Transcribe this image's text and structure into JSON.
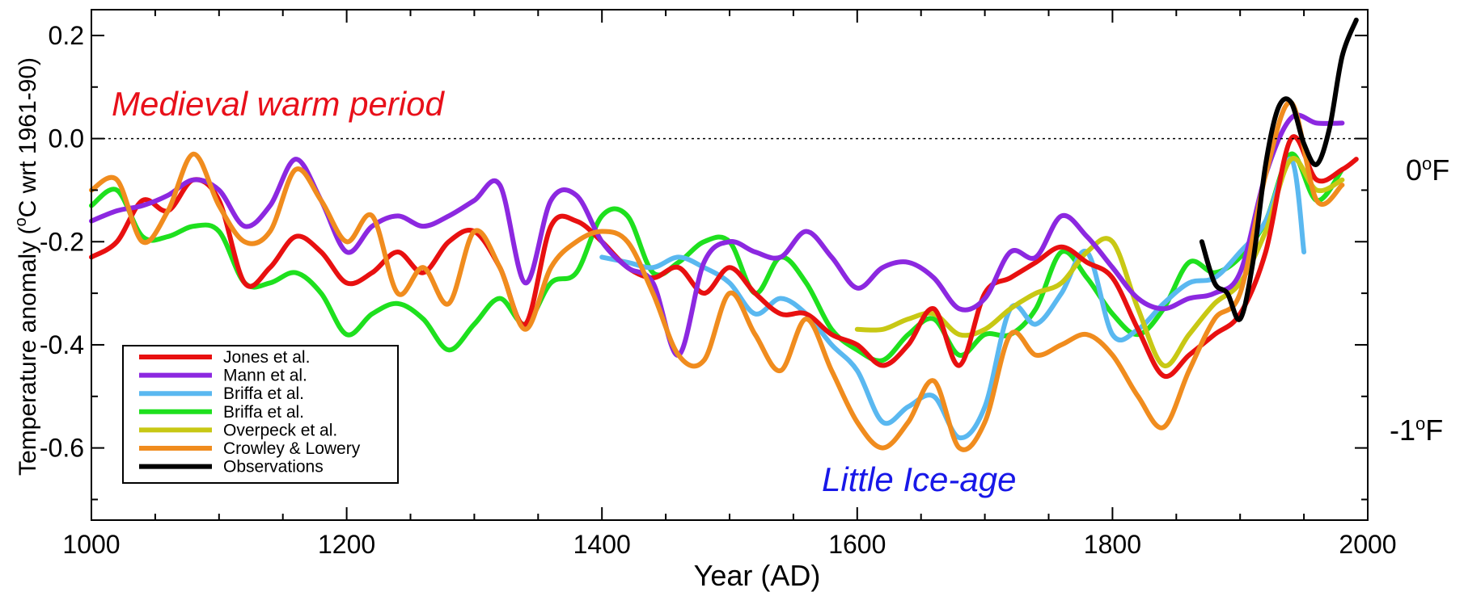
{
  "chart_data": {
    "type": "line",
    "title": "",
    "xlabel": "Year  (AD)",
    "ylabel_main": "Temperature anomaly  (",
    "ylabel_sup": "o",
    "ylabel_rest": "C wrt 1961-90)",
    "xlim": [
      1000,
      2000
    ],
    "ylim": [
      -0.74,
      0.25
    ],
    "x_ticks": [
      1000,
      1200,
      1400,
      1600,
      1800,
      2000
    ],
    "y_ticks": [
      0.2,
      0.0,
      -0.2,
      -0.4,
      -0.6
    ],
    "y_tick_labels": [
      "0.2",
      "0.0",
      "-0.2",
      "-0.4",
      "-0.6"
    ],
    "zero_line": "dotted",
    "grid": false,
    "legend_position": "bottom-left",
    "annotations": [
      {
        "text": "Medieval warm period",
        "color": "#e8101a",
        "x": 1140,
        "y": 0.03
      },
      {
        "text": "Little Ice-age",
        "color": "#1818e8",
        "x": 1680,
        "y": -0.66
      }
    ],
    "right_axis_labels": [
      {
        "num": "0",
        "sup": "o",
        "unit": "F",
        "y": 0.0
      },
      {
        "num": "-1",
        "sup": "o",
        "unit": "F",
        "y": -0.56
      }
    ],
    "series": [
      {
        "name": "Jones et al.",
        "color": "#e81010",
        "x": [
          1000,
          1020,
          1040,
          1060,
          1080,
          1100,
          1120,
          1140,
          1160,
          1180,
          1200,
          1220,
          1240,
          1260,
          1280,
          1300,
          1320,
          1340,
          1360,
          1380,
          1400,
          1420,
          1440,
          1460,
          1480,
          1500,
          1520,
          1540,
          1560,
          1580,
          1600,
          1620,
          1640,
          1660,
          1680,
          1700,
          1720,
          1740,
          1760,
          1780,
          1800,
          1820,
          1840,
          1860,
          1880,
          1900,
          1920,
          1940,
          1960,
          1980,
          1991
        ],
        "y": [
          -0.23,
          -0.2,
          -0.12,
          -0.14,
          -0.08,
          -0.12,
          -0.28,
          -0.25,
          -0.19,
          -0.22,
          -0.28,
          -0.26,
          -0.22,
          -0.26,
          -0.2,
          -0.18,
          -0.25,
          -0.36,
          -0.17,
          -0.16,
          -0.2,
          -0.25,
          -0.27,
          -0.25,
          -0.3,
          -0.25,
          -0.3,
          -0.34,
          -0.34,
          -0.38,
          -0.4,
          -0.44,
          -0.4,
          -0.33,
          -0.44,
          -0.3,
          -0.27,
          -0.24,
          -0.21,
          -0.24,
          -0.27,
          -0.37,
          -0.46,
          -0.42,
          -0.38,
          -0.34,
          -0.22,
          0.0,
          -0.08,
          -0.06,
          -0.04
        ]
      },
      {
        "name": "Mann et al.",
        "color": "#8c28e0",
        "x": [
          1000,
          1020,
          1040,
          1060,
          1080,
          1100,
          1120,
          1140,
          1160,
          1180,
          1200,
          1220,
          1240,
          1260,
          1280,
          1300,
          1320,
          1340,
          1360,
          1380,
          1400,
          1420,
          1440,
          1460,
          1480,
          1500,
          1520,
          1540,
          1560,
          1580,
          1600,
          1620,
          1640,
          1660,
          1680,
          1700,
          1720,
          1740,
          1760,
          1780,
          1800,
          1820,
          1840,
          1860,
          1880,
          1900,
          1920,
          1940,
          1960,
          1980
        ],
        "y": [
          -0.16,
          -0.14,
          -0.13,
          -0.11,
          -0.08,
          -0.1,
          -0.17,
          -0.13,
          -0.04,
          -0.12,
          -0.22,
          -0.17,
          -0.15,
          -0.17,
          -0.15,
          -0.12,
          -0.09,
          -0.28,
          -0.12,
          -0.11,
          -0.2,
          -0.25,
          -0.28,
          -0.42,
          -0.24,
          -0.2,
          -0.22,
          -0.23,
          -0.18,
          -0.23,
          -0.29,
          -0.25,
          -0.24,
          -0.27,
          -0.33,
          -0.31,
          -0.22,
          -0.23,
          -0.15,
          -0.19,
          -0.25,
          -0.31,
          -0.33,
          -0.31,
          -0.3,
          -0.26,
          -0.07,
          0.04,
          0.03,
          0.03
        ]
      },
      {
        "name": "Briffa et al.",
        "color": "#5ab8f0",
        "x": [
          1400,
          1420,
          1440,
          1460,
          1480,
          1500,
          1520,
          1540,
          1560,
          1580,
          1600,
          1620,
          1640,
          1660,
          1680,
          1700,
          1720,
          1740,
          1760,
          1780,
          1800,
          1820,
          1840,
          1860,
          1880,
          1900,
          1920,
          1940,
          1950
        ],
        "y": [
          -0.23,
          -0.24,
          -0.25,
          -0.23,
          -0.25,
          -0.28,
          -0.34,
          -0.31,
          -0.34,
          -0.4,
          -0.45,
          -0.55,
          -0.52,
          -0.5,
          -0.58,
          -0.52,
          -0.33,
          -0.36,
          -0.3,
          -0.22,
          -0.38,
          -0.37,
          -0.32,
          -0.28,
          -0.27,
          -0.22,
          -0.16,
          -0.04,
          -0.22
        ]
      },
      {
        "name": "Briffa et al.",
        "color": "#1ee01e",
        "x": [
          1000,
          1020,
          1040,
          1060,
          1080,
          1100,
          1120,
          1140,
          1160,
          1180,
          1200,
          1220,
          1240,
          1260,
          1280,
          1300,
          1320,
          1340,
          1360,
          1380,
          1400,
          1420,
          1440,
          1460,
          1480,
          1500,
          1520,
          1540,
          1560,
          1580,
          1600,
          1620,
          1640,
          1660,
          1680,
          1700,
          1720,
          1740,
          1760,
          1780,
          1800,
          1820,
          1840,
          1860,
          1880,
          1900,
          1920,
          1940,
          1960,
          1980
        ],
        "y": [
          -0.13,
          -0.1,
          -0.19,
          -0.19,
          -0.17,
          -0.18,
          -0.28,
          -0.28,
          -0.26,
          -0.3,
          -0.38,
          -0.34,
          -0.32,
          -0.35,
          -0.41,
          -0.36,
          -0.31,
          -0.36,
          -0.28,
          -0.26,
          -0.15,
          -0.15,
          -0.26,
          -0.24,
          -0.2,
          -0.2,
          -0.3,
          -0.23,
          -0.28,
          -0.37,
          -0.41,
          -0.43,
          -0.38,
          -0.35,
          -0.42,
          -0.38,
          -0.38,
          -0.33,
          -0.22,
          -0.27,
          -0.34,
          -0.38,
          -0.33,
          -0.24,
          -0.26,
          -0.23,
          -0.16,
          -0.03,
          -0.12,
          -0.06
        ]
      },
      {
        "name": "Overpeck et al.",
        "color": "#c8c814",
        "x": [
          1600,
          1620,
          1640,
          1660,
          1680,
          1700,
          1720,
          1740,
          1760,
          1780,
          1800,
          1820,
          1840,
          1860,
          1880,
          1900,
          1920,
          1940,
          1960,
          1980
        ],
        "y": [
          -0.37,
          -0.37,
          -0.35,
          -0.34,
          -0.38,
          -0.37,
          -0.33,
          -0.3,
          -0.28,
          -0.22,
          -0.2,
          -0.33,
          -0.44,
          -0.38,
          -0.32,
          -0.28,
          -0.18,
          -0.04,
          -0.1,
          -0.08
        ]
      },
      {
        "name": "Crowley & Lowery",
        "color": "#f08c1e",
        "x": [
          1000,
          1020,
          1040,
          1060,
          1080,
          1100,
          1120,
          1140,
          1160,
          1180,
          1200,
          1220,
          1240,
          1260,
          1280,
          1300,
          1320,
          1340,
          1360,
          1380,
          1400,
          1420,
          1440,
          1460,
          1480,
          1500,
          1520,
          1540,
          1560,
          1580,
          1600,
          1620,
          1640,
          1660,
          1680,
          1700,
          1720,
          1740,
          1760,
          1780,
          1800,
          1820,
          1840,
          1860,
          1880,
          1900,
          1920,
          1940,
          1960,
          1980
        ],
        "y": [
          -0.1,
          -0.08,
          -0.2,
          -0.14,
          -0.03,
          -0.13,
          -0.2,
          -0.18,
          -0.06,
          -0.12,
          -0.2,
          -0.15,
          -0.3,
          -0.25,
          -0.32,
          -0.18,
          -0.25,
          -0.37,
          -0.25,
          -0.2,
          -0.18,
          -0.2,
          -0.3,
          -0.42,
          -0.43,
          -0.3,
          -0.38,
          -0.45,
          -0.35,
          -0.45,
          -0.55,
          -0.6,
          -0.55,
          -0.47,
          -0.6,
          -0.55,
          -0.38,
          -0.42,
          -0.4,
          -0.38,
          -0.42,
          -0.5,
          -0.56,
          -0.45,
          -0.35,
          -0.3,
          -0.07,
          0.07,
          -0.12,
          -0.09
        ]
      },
      {
        "name": "Observations",
        "color": "#000000",
        "x": [
          1870,
          1880,
          1890,
          1900,
          1910,
          1920,
          1930,
          1940,
          1950,
          1960,
          1970,
          1980,
          1991
        ],
        "y": [
          -0.2,
          -0.28,
          -0.3,
          -0.35,
          -0.24,
          -0.05,
          0.06,
          0.07,
          -0.01,
          -0.05,
          0.02,
          0.16,
          0.23
        ]
      }
    ]
  }
}
